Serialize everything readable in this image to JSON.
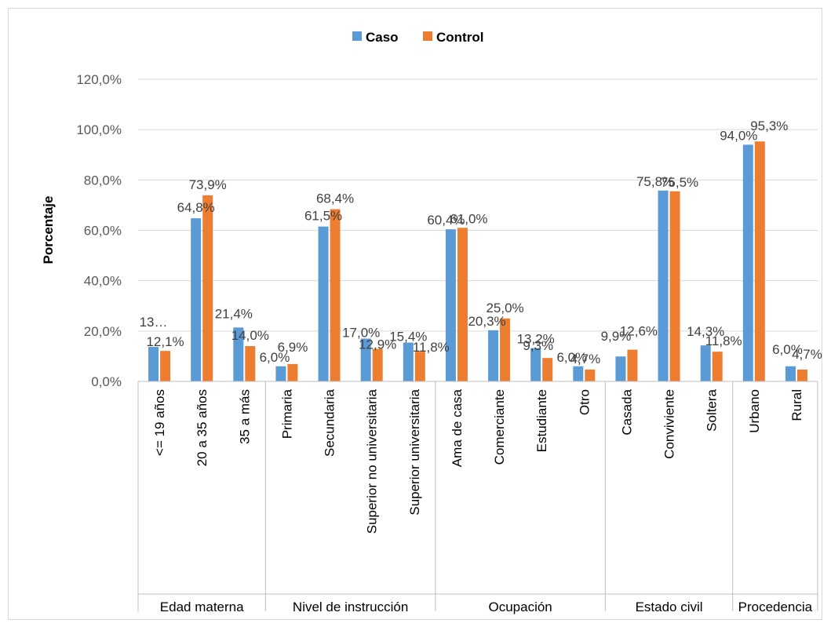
{
  "chart_data": {
    "type": "bar",
    "title": "",
    "ylabel": "Porcentaje",
    "xlabel": "",
    "ylim": [
      0,
      120
    ],
    "yticks": [
      "0,0%",
      "20,0%",
      "40,0%",
      "60,0%",
      "80,0%",
      "100,0%",
      "120,0%"
    ],
    "ytick_values": [
      0,
      20,
      40,
      60,
      80,
      100,
      120
    ],
    "legend_position": "top",
    "grid": true,
    "categories": [
      "<= 19 años",
      "20 a 35 años",
      "35 a más",
      "Primaria",
      "Secundaria",
      "Superior no universitaria",
      "Superior universitaria",
      "Ama de casa",
      "Comerciante",
      "Estudiante",
      "Otro",
      "Casada",
      "Conviviente",
      "Soltera",
      "Urbano",
      "Rural"
    ],
    "groups": [
      {
        "label": "Edad materna",
        "count": 3
      },
      {
        "label": "Nivel de instrucción",
        "count": 4
      },
      {
        "label": "Ocupación",
        "count": 4
      },
      {
        "label": "Estado civil",
        "count": 3
      },
      {
        "label": "Procedencia",
        "count": 2
      }
    ],
    "series": [
      {
        "name": "Caso",
        "color": "#5b9bd5",
        "values": [
          13.7,
          64.8,
          21.4,
          6.0,
          61.5,
          17.0,
          15.4,
          60.4,
          20.3,
          13.2,
          6.0,
          9.9,
          75.8,
          14.3,
          94.0,
          6.0
        ],
        "labels": [
          "13…",
          "64,8%",
          "21,4%",
          "6,0%",
          "61,5%",
          "17,0%",
          "15,4%",
          "60,4%",
          "20,3%",
          "13,2%",
          "6,0%",
          "9,9%",
          "75,8%",
          "14,3%",
          "94,0%",
          "6,0%"
        ]
      },
      {
        "name": "Control",
        "color": "#ed7d31",
        "values": [
          12.1,
          73.9,
          14.0,
          6.9,
          68.4,
          12.9,
          11.8,
          61.0,
          25.0,
          9.3,
          4.7,
          12.6,
          75.5,
          11.8,
          95.3,
          4.7
        ],
        "labels": [
          "12,1%",
          "73,9%",
          "14,0%",
          "6,9%",
          "68,4%",
          "12,9%",
          "11,8%",
          "61,0%",
          "25,0%",
          "9,3%",
          "4,7%",
          "12,6%",
          "75,5%",
          "11,8%",
          "95,3%",
          "4,7%"
        ]
      }
    ]
  }
}
